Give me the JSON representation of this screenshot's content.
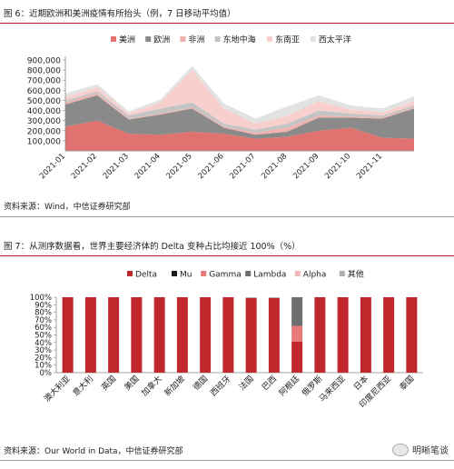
{
  "figure1": {
    "title": "图 6：近期欧洲和美洲疫情有所抬头（例，7 日移动平均值）",
    "source": "资料来源：Wind，中信证券研究部"
  },
  "figure2": {
    "title": "图 7：从测序数据看，世界主要经济体的 Delta 变种占比均接近 100%（%）",
    "source": "资料来源：Our World in Data，中信证券研究部"
  },
  "watermark": "明晰笔谈",
  "chart_data": [
    {
      "type": "area",
      "stacked": true,
      "title": "",
      "xlabel": "",
      "ylabel": "",
      "ylim": [
        0,
        900000
      ],
      "yticks": [
        100000,
        200000,
        300000,
        400000,
        500000,
        600000,
        700000,
        800000,
        900000
      ],
      "ytick_labels": [
        "100,000",
        "200,000",
        "300,000",
        "400,000",
        "500,000",
        "600,000",
        "700,000",
        "800,000",
        "900,000"
      ],
      "x": [
        "2021-01",
        "2021-02",
        "2021-03",
        "2021-04",
        "2021-05",
        "2021-06",
        "2021-07",
        "2021-08",
        "2021-09",
        "2021-10",
        "2021-11",
        "2021-12"
      ],
      "xtick_labels": [
        "2021-01",
        "2021-02",
        "2021-03",
        "2021-04",
        "2021-05",
        "2021-06",
        "2021-07",
        "2021-08",
        "2021-09",
        "2021-10",
        "2021-11"
      ],
      "legend_position": "top",
      "series": [
        {
          "name": "美洲",
          "color": "#e0736f",
          "values": [
            240000,
            300000,
            170000,
            160000,
            190000,
            170000,
            120000,
            140000,
            200000,
            230000,
            130000,
            120000
          ]
        },
        {
          "name": "欧洲",
          "color": "#8a8a8a",
          "values": [
            220000,
            250000,
            140000,
            200000,
            230000,
            60000,
            40000,
            50000,
            130000,
            100000,
            190000,
            300000
          ]
        },
        {
          "name": "非洲",
          "color": "#f0b2ae",
          "values": [
            20000,
            20000,
            10000,
            10000,
            10000,
            10000,
            20000,
            40000,
            20000,
            10000,
            10000,
            10000
          ]
        },
        {
          "name": "东地中海",
          "color": "#c4c4c4",
          "values": [
            20000,
            20000,
            30000,
            50000,
            50000,
            30000,
            30000,
            40000,
            50000,
            30000,
            20000,
            20000
          ]
        },
        {
          "name": "东南亚",
          "color": "#f7d0cd",
          "values": [
            30000,
            40000,
            20000,
            60000,
            320000,
            150000,
            60000,
            80000,
            90000,
            40000,
            30000,
            40000
          ]
        },
        {
          "name": "西太平洋",
          "color": "#e2e2e2",
          "values": [
            40000,
            30000,
            20000,
            30000,
            40000,
            50000,
            50000,
            90000,
            60000,
            40000,
            40000,
            50000
          ]
        }
      ]
    },
    {
      "type": "bar",
      "stacked": true,
      "title": "",
      "xlabel": "",
      "ylabel": "",
      "ylim": [
        0,
        100
      ],
      "yticks": [
        0,
        10,
        20,
        30,
        40,
        50,
        60,
        70,
        80,
        90,
        100
      ],
      "ytick_labels": [
        "0%",
        "10%",
        "20%",
        "30%",
        "40%",
        "50%",
        "60%",
        "70%",
        "80%",
        "90%",
        "100%"
      ],
      "categories": [
        "澳大利亚",
        "意大利",
        "英国",
        "美国",
        "加拿大",
        "新加坡",
        "德国",
        "西班牙",
        "法国",
        "巴西",
        "阿根廷",
        "俄罗斯",
        "马来西亚",
        "日本",
        "印度尼西亚",
        "泰国"
      ],
      "legend_position": "top",
      "series": [
        {
          "name": "Delta",
          "color": "#c0282d",
          "values": [
            100,
            100,
            100,
            100,
            100,
            100,
            100,
            100,
            99,
            99,
            41,
            100,
            100,
            100,
            100,
            100
          ]
        },
        {
          "name": "Mu",
          "color": "#1a1a1a",
          "values": [
            0,
            0,
            0,
            0,
            0,
            0,
            0,
            0,
            0,
            0,
            0,
            0,
            0,
            0,
            0,
            0
          ]
        },
        {
          "name": "Gamma",
          "color": "#e87a7a",
          "values": [
            0,
            0,
            0,
            0,
            0,
            0,
            0,
            0,
            0,
            0,
            21,
            0,
            0,
            0,
            0,
            0
          ]
        },
        {
          "name": "Lambda",
          "color": "#6e6e6e",
          "values": [
            0,
            0,
            0,
            0,
            0,
            0,
            0,
            0,
            0,
            0,
            38,
            0,
            0,
            0,
            0,
            0
          ]
        },
        {
          "name": "Alpha",
          "color": "#f4b9b6",
          "values": [
            0,
            0,
            0,
            0,
            0,
            0,
            0,
            0,
            0,
            0,
            0,
            0,
            0,
            0,
            0,
            0
          ]
        },
        {
          "name": "其他",
          "color": "#b0b0b0",
          "values": [
            0,
            0,
            0,
            0,
            0,
            0,
            0,
            0,
            1,
            1,
            0,
            0,
            0,
            0,
            0,
            0
          ]
        }
      ]
    }
  ]
}
